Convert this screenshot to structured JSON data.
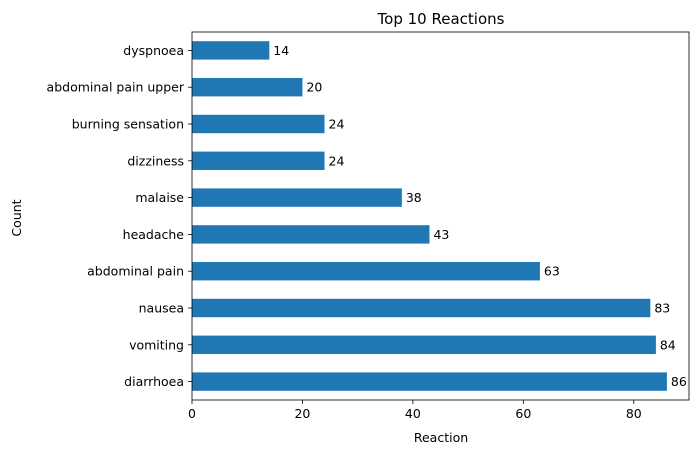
{
  "chart_data": {
    "type": "bar",
    "orientation": "horizontal",
    "title": "Top 10 Reactions",
    "xlabel": "Reaction",
    "ylabel": "Count",
    "categories": [
      "diarrhoea",
      "vomiting",
      "nausea",
      "abdominal pain",
      "headache",
      "malaise",
      "dizziness",
      "burning sensation",
      "abdominal pain upper",
      "dyspnoea"
    ],
    "values": [
      86,
      84,
      83,
      63,
      43,
      38,
      24,
      24,
      20,
      14
    ],
    "xlim": [
      0,
      90
    ],
    "xticks": [
      0,
      20,
      40,
      60,
      80
    ],
    "grid": false,
    "bar_color": "#1f77b4",
    "data_labels": true
  }
}
